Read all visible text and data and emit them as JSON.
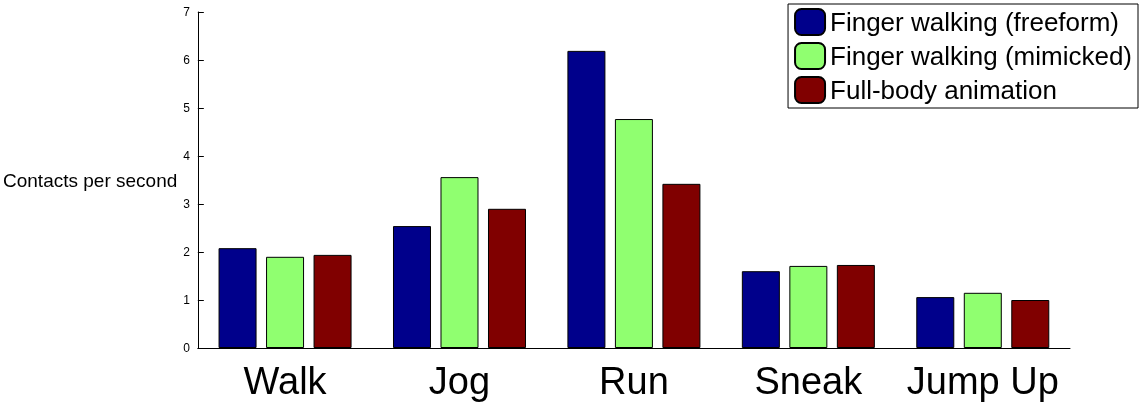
{
  "chart_data": {
    "type": "bar",
    "ylabel": "Contacts per second",
    "categories": [
      "Walk",
      "Jog",
      "Run",
      "Sneak",
      "Jump Up"
    ],
    "series": [
      {
        "name": "Finger walking (freeform)",
        "color": "#00008b",
        "values": [
          2.08,
          2.54,
          6.19,
          1.6,
          1.06
        ]
      },
      {
        "name": "Finger walking (mimicked)",
        "color": "#90ff70",
        "values": [
          1.9,
          3.56,
          4.77,
          1.71,
          1.15
        ]
      },
      {
        "name": "Full-body animation",
        "color": "#800000",
        "values": [
          1.94,
          2.9,
          3.42,
          1.73,
          1.0
        ]
      }
    ],
    "ylim": [
      0,
      7
    ],
    "yticks": [
      0,
      1,
      2,
      3,
      4,
      5,
      6,
      7
    ],
    "grid": false,
    "legend": "top right"
  }
}
